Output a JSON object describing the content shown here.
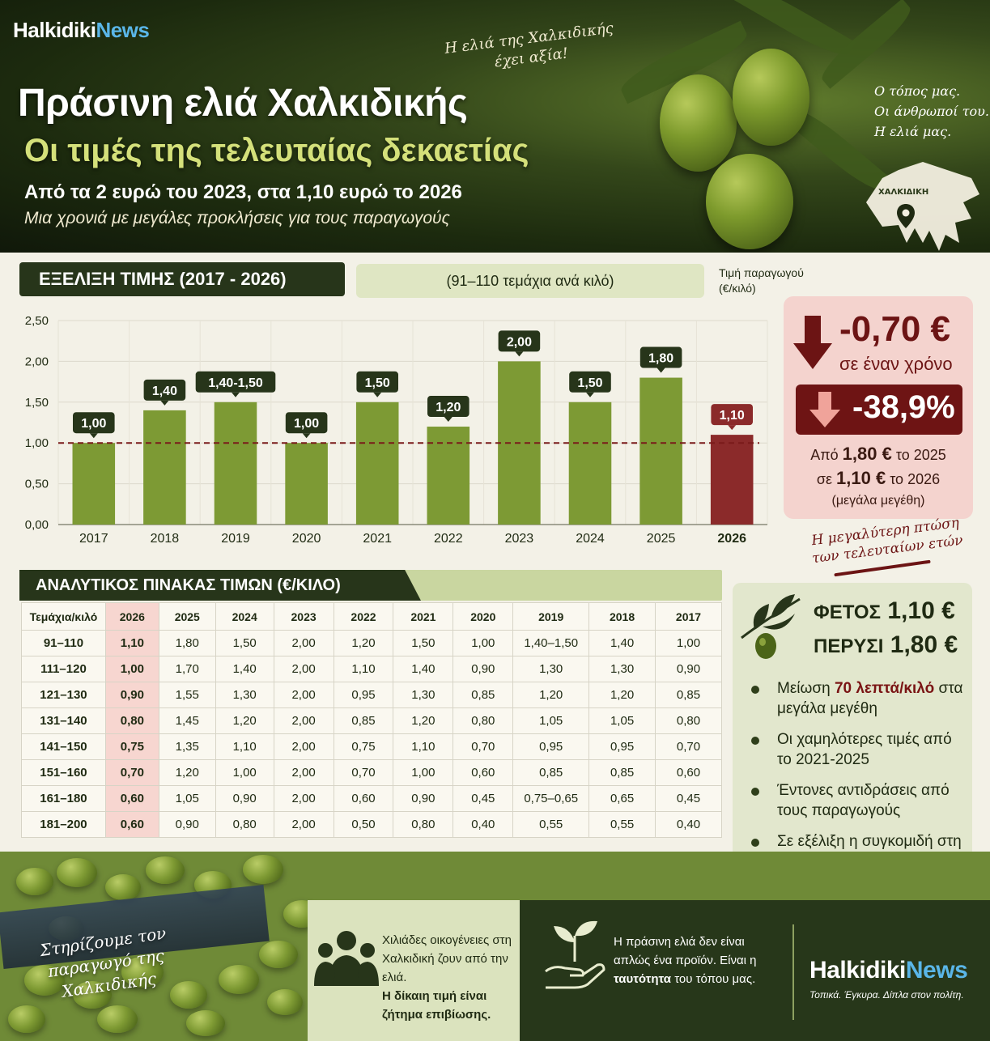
{
  "header": {
    "logo_part1": "Halkidiki",
    "logo_part2": "News",
    "tagline": "Η ελιά της Χαλκιδικής έχει αξία!",
    "title": "Πράσινη ελιά Χαλκιδικής",
    "subtitle": "Οι τιμές της τελευταίας δεκαετίας",
    "lead": "Από τα 2 ευρώ του 2023, στα 1,10 ευρώ το 2026",
    "lead_italic": "Μια χρονιά με μεγάλες προκλήσεις για τους παραγωγούς",
    "place_lines": [
      "Ο τόπος μας.",
      "Οι άνθρωποί του.",
      "Η ελιά μας."
    ],
    "map_label": "ΧΑΛΚΙΔΙΚΗ"
  },
  "chart_section": {
    "title": "ΕΞΕΛΙΞΗ ΤΙΜΗΣ (2017 - 2026)",
    "size_note": "(91–110 τεμάχια ανά κιλό)",
    "unit_line1": "Τιμή παραγωγού",
    "unit_line2": "(€/κιλό)"
  },
  "chart_data": {
    "type": "bar",
    "categories": [
      "2017",
      "2018",
      "2019",
      "2020",
      "2021",
      "2022",
      "2023",
      "2024",
      "2025",
      "2026"
    ],
    "values": [
      1.0,
      1.4,
      1.5,
      1.0,
      1.5,
      1.2,
      2.0,
      1.5,
      1.8,
      1.1
    ],
    "value_labels": [
      "1,00",
      "1,40",
      "1,40-1,50",
      "1,00",
      "1,50",
      "1,20",
      "2,00",
      "1,50",
      "1,80",
      "1,10"
    ],
    "yticks": [
      "0,00",
      "0,50",
      "1,00",
      "1,50",
      "2,00",
      "2,50"
    ],
    "ylim": [
      0,
      2.5
    ],
    "reference_line": 1.0,
    "highlight_category": "2026",
    "colors": {
      "bar": "#7d9a34",
      "highlight": "#8b2a2a",
      "label_bg": "#27351a",
      "reference": "#7a1a1a"
    }
  },
  "drop_box": {
    "amount": "-0,70 €",
    "amount_caption": "σε έναν χρόνο",
    "percent": "-38,9%",
    "from_prefix": "Από",
    "from_value": "1,80 €",
    "from_suffix": "το 2025",
    "to_prefix": "σε",
    "to_value": "1,10 €",
    "to_suffix": "το 2026",
    "note": "(μεγάλα μεγέθη)",
    "caption": "Η μεγαλύτερη πτώση των τελευταίων ετών"
  },
  "table": {
    "title": "ΑΝΑΛΥΤΙΚΟΣ ΠΙΝΑΚΑΣ ΤΙΜΩΝ (€/ΚΙΛΟ)",
    "headers": [
      "Τεμάχια/κιλό",
      "2026",
      "2025",
      "2024",
      "2023",
      "2022",
      "2021",
      "2020",
      "2019",
      "2018",
      "2017"
    ],
    "rows": [
      [
        "91–110",
        "1,10",
        "1,80",
        "1,50",
        "2,00",
        "1,20",
        "1,50",
        "1,00",
        "1,40–1,50",
        "1,40",
        "1,00"
      ],
      [
        "111–120",
        "1,00",
        "1,70",
        "1,40",
        "2,00",
        "1,10",
        "1,40",
        "0,90",
        "1,30",
        "1,30",
        "0,90"
      ],
      [
        "121–130",
        "0,90",
        "1,55",
        "1,30",
        "2,00",
        "0,95",
        "1,30",
        "0,85",
        "1,20",
        "1,20",
        "0,85"
      ],
      [
        "131–140",
        "0,80",
        "1,45",
        "1,20",
        "2,00",
        "0,85",
        "1,20",
        "0,80",
        "1,05",
        "1,05",
        "0,80"
      ],
      [
        "141–150",
        "0,75",
        "1,35",
        "1,10",
        "2,00",
        "0,75",
        "1,10",
        "0,70",
        "0,95",
        "0,95",
        "0,70"
      ],
      [
        "151–160",
        "0,70",
        "1,20",
        "1,00",
        "2,00",
        "0,70",
        "1,00",
        "0,60",
        "0,85",
        "0,85",
        "0,60"
      ],
      [
        "161–180",
        "0,60",
        "1,05",
        "0,90",
        "2,00",
        "0,60",
        "0,90",
        "0,45",
        "0,75–0,65",
        "0,65",
        "0,45"
      ],
      [
        "181–200",
        "0,60",
        "0,90",
        "0,80",
        "2,00",
        "0,50",
        "0,80",
        "0,40",
        "0,55",
        "0,55",
        "0,40"
      ]
    ]
  },
  "summary": {
    "this_year_label": "ΦΕΤΟΣ",
    "this_year_value": "1,10 €",
    "last_year_label": "ΠΕΡΥΣΙ",
    "last_year_value": "1,80 €",
    "bullets": [
      {
        "text": "Μείωση ",
        "bold": "70 λεπτά/κιλό",
        "tail": " στα μεγάλα μεγέθη"
      },
      {
        "text": "Οι χαμηλότερες τιμές από το 2021-2025",
        "bold": "",
        "tail": ""
      },
      {
        "text": "Έντονες αντιδράσεις από τους παραγωγούς",
        "bold": "",
        "tail": ""
      },
      {
        "text": "Σε εξέλιξη η συγκομιδή στη Χαλκιδική",
        "bold": "",
        "tail": ""
      }
    ]
  },
  "footer": {
    "support_text": "Στηρίζουμε τον παραγωγό της Χαλκιδικής",
    "families_text": "Χιλιάδες οικογένειες στη Χαλκιδική ζουν από την ελιά.",
    "families_bold": "Η δίκαιη τιμή είναι ζήτημα επιβίωσης.",
    "identity_pre": "Η πράσινη ελιά δεν είναι απλώς ένα προϊόν. Είναι η ",
    "identity_bold": "ταυτότητα",
    "identity_post": " του τόπου μας.",
    "logo_part1": "Halkidiki",
    "logo_part2": "News",
    "slogan": "Τοπικά. Έγκυρα. Δίπλα στον πολίτη."
  }
}
